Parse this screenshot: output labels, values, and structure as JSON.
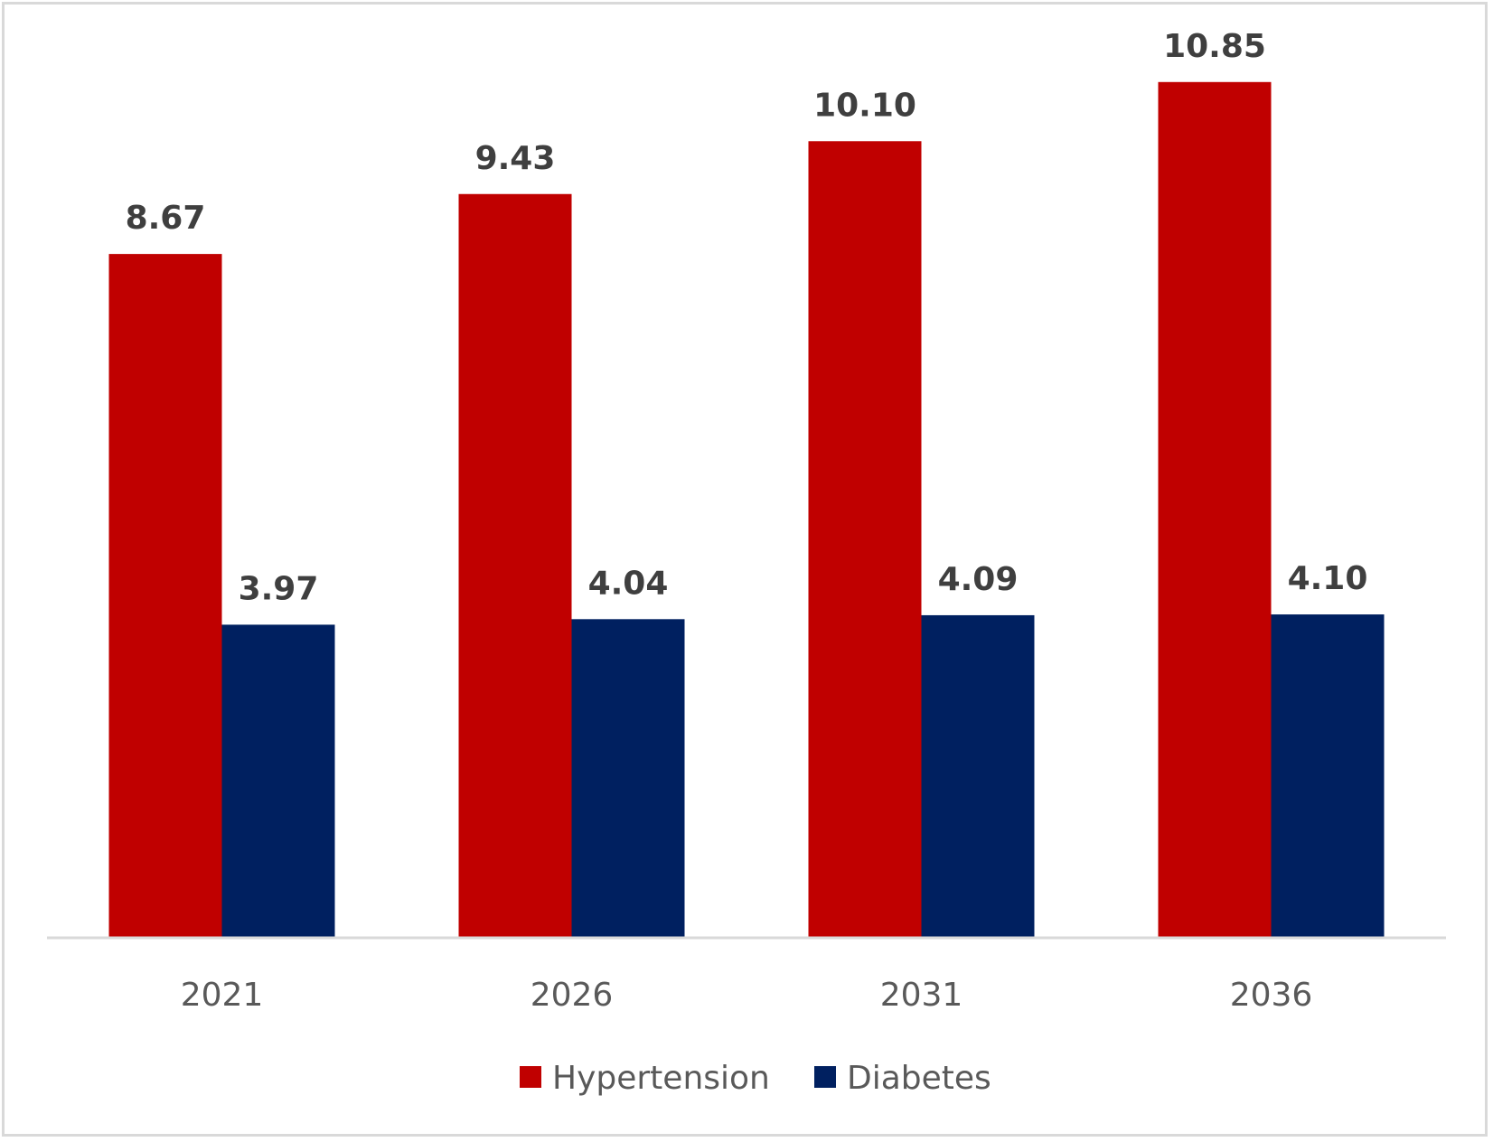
{
  "chart_data": {
    "type": "bar",
    "categories": [
      "2021",
      "2026",
      "2031",
      "2036"
    ],
    "series": [
      {
        "name": "Hypertension",
        "color": "#c00000",
        "values": [
          8.67,
          9.43,
          10.1,
          10.85
        ],
        "labels": [
          "8.67",
          "9.43",
          "10.10",
          "10.85"
        ]
      },
      {
        "name": "Diabetes",
        "color": "#002060",
        "values": [
          3.97,
          4.04,
          4.09,
          4.1
        ],
        "labels": [
          "3.97",
          "4.04",
          "4.09",
          "4.10"
        ]
      }
    ],
    "title": "",
    "xlabel": "",
    "ylabel": "",
    "ylim": [
      0,
      12
    ],
    "grid": false,
    "legend": "bottom"
  }
}
